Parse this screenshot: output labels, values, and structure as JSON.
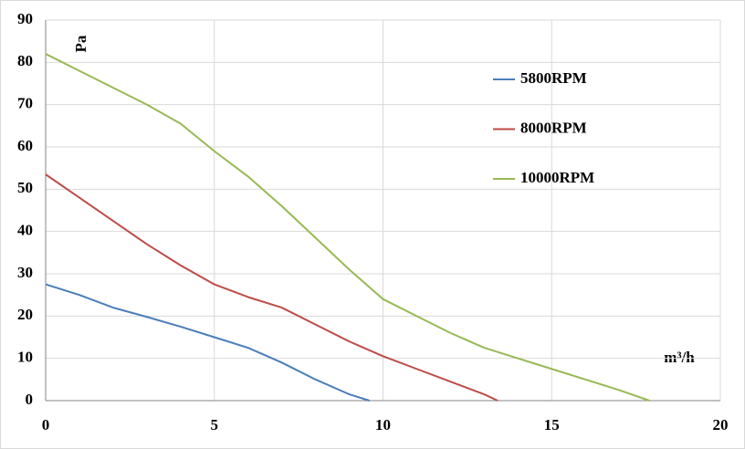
{
  "chart_data": {
    "type": "line",
    "y_label": "Pa",
    "x_label": "m³/h",
    "xlim": [
      0,
      20
    ],
    "xticks": [
      0,
      5,
      10,
      15,
      20
    ],
    "ylim": [
      0,
      90
    ],
    "yticks": [
      0,
      10,
      20,
      30,
      40,
      50,
      60,
      70,
      80,
      90
    ],
    "grid": true,
    "legend": "upper right",
    "series": [
      {
        "name": "5800RPM",
        "color": "#4a7ebb",
        "x": [
          0,
          1,
          2,
          3,
          4,
          5,
          6,
          7,
          8,
          9,
          9.6
        ],
        "values": [
          27.5,
          25,
          22,
          19.8,
          17.5,
          15,
          12.5,
          9,
          5,
          1.5,
          0
        ]
      },
      {
        "name": "8000RPM",
        "color": "#be4b48",
        "x": [
          0,
          1,
          2,
          3,
          4,
          5,
          6,
          7,
          8,
          9,
          10,
          11,
          12,
          13,
          13.4
        ],
        "values": [
          53.5,
          48,
          42.5,
          37,
          32,
          27.5,
          24.5,
          22,
          18,
          14,
          10.5,
          7.5,
          4.5,
          1.5,
          0
        ]
      },
      {
        "name": "10000RPM",
        "color": "#98b954",
        "x": [
          0,
          1,
          2,
          3,
          4,
          5,
          6,
          7,
          8,
          9,
          10,
          11,
          12,
          13,
          14,
          15,
          16,
          17,
          17.9
        ],
        "values": [
          82,
          78,
          74,
          70,
          65.5,
          59,
          53,
          46,
          38.5,
          31,
          24,
          20,
          16,
          12.5,
          10,
          7.5,
          5,
          2.5,
          0
        ]
      }
    ]
  }
}
